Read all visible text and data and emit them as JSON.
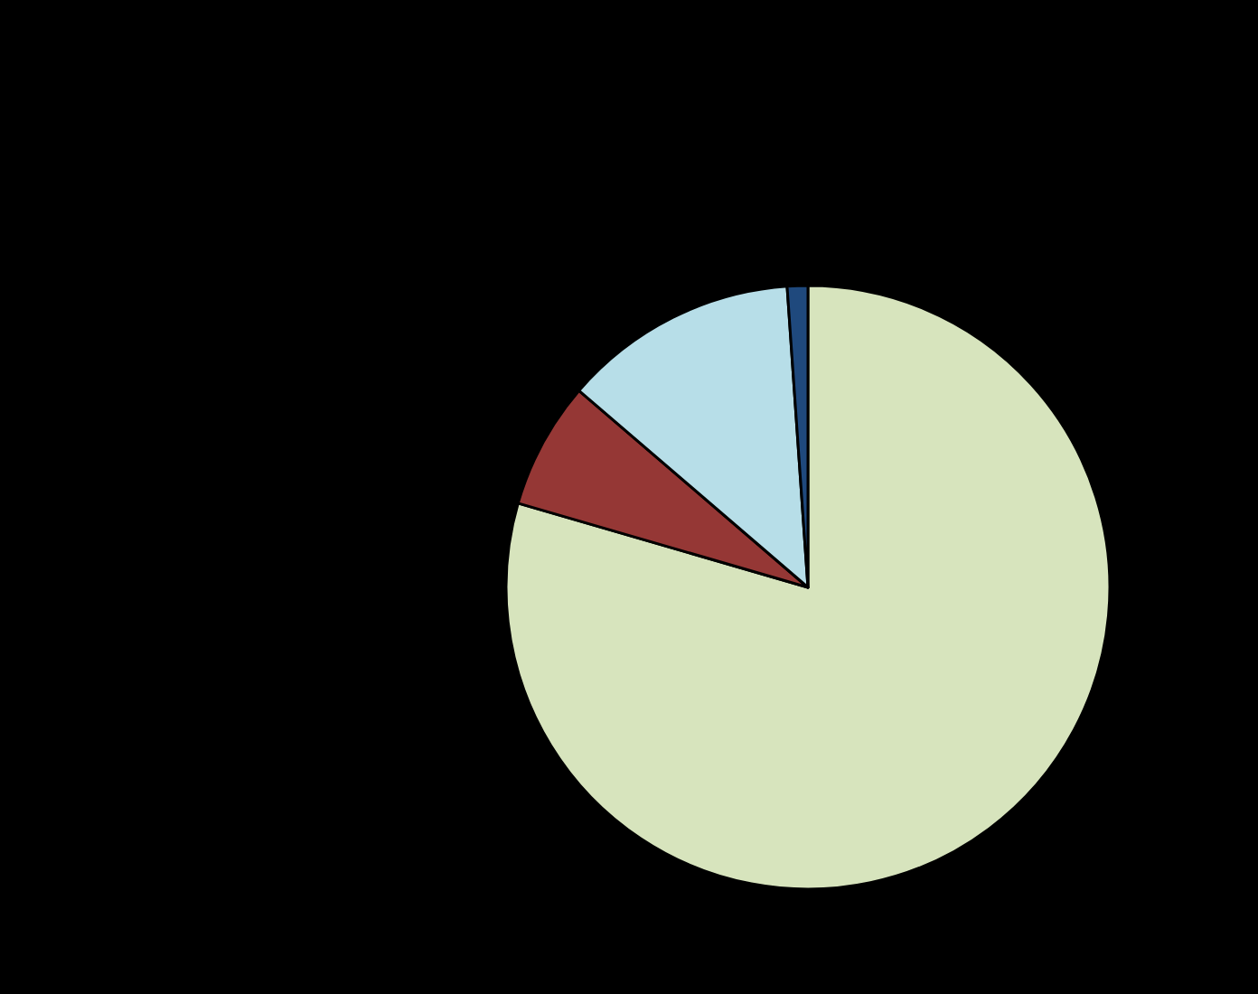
{
  "chart_data": {
    "type": "pie",
    "categories": [
      null,
      null,
      null,
      null
    ],
    "values": [
      79.5,
      6.8,
      12.6,
      1.1
    ],
    "colors": [
      "#d7e4bd",
      "#953735",
      "#b7dee8",
      "#1f497d"
    ]
  }
}
